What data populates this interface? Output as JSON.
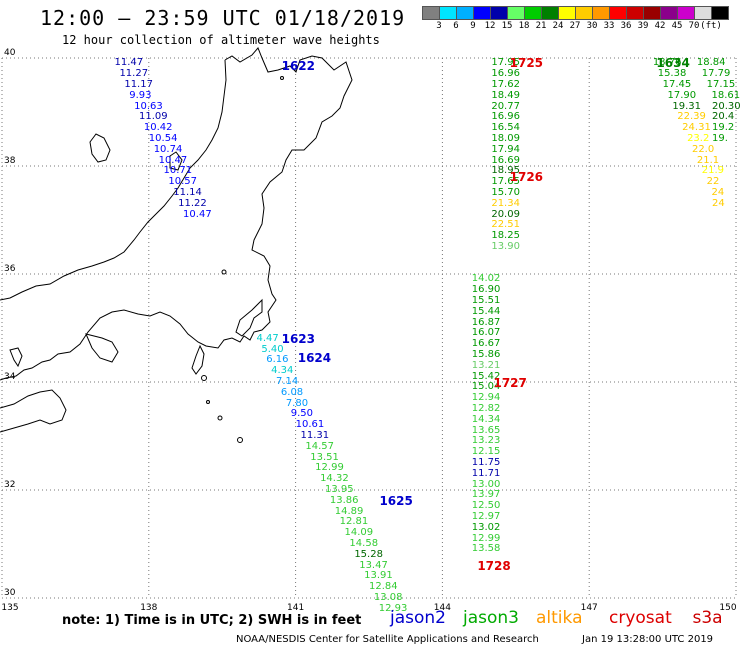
{
  "title": "12:00 – 23:59 UTC 01/18/2019",
  "subtitle": "12 hour collection of altimeter wave heights",
  "scale": {
    "colors": [
      "#808080",
      "#00e5ff",
      "#00b0ff",
      "#0000ff",
      "#0000aa",
      "#66ff66",
      "#00cc00",
      "#008000",
      "#ffff00",
      "#ffcc00",
      "#ff9900",
      "#ff0000",
      "#cc0000",
      "#990000",
      "#8b008b",
      "#cc00cc",
      "#dddddd",
      "#000000"
    ],
    "labels": [
      "3",
      "6",
      "9",
      "12",
      "15",
      "18",
      "21",
      "24",
      "27",
      "30",
      "33",
      "36",
      "39",
      "42",
      "45",
      "70",
      "(ft)"
    ]
  },
  "axes": {
    "lon_labels": [
      "135",
      "138",
      "141",
      "144",
      "147",
      "150"
    ],
    "lat_labels": [
      "40",
      "38",
      "36",
      "34",
      "32",
      "30"
    ]
  },
  "passes": [
    {
      "id": "1622",
      "lon": 141.0,
      "lat": 39.85,
      "color": "#0000cc"
    },
    {
      "id": "1623",
      "lon": 141.0,
      "lat": 34.8,
      "color": "#0000cc"
    },
    {
      "id": "1624",
      "lon": 141.33,
      "lat": 34.44,
      "color": "#0000cc"
    },
    {
      "id": "1625",
      "lon": 143.0,
      "lat": 31.8,
      "color": "#0000cc"
    },
    {
      "id": "1725",
      "lon": 145.66,
      "lat": 39.9,
      "color": "#e00000"
    },
    {
      "id": "1726",
      "lon": 145.66,
      "lat": 37.8,
      "color": "#e00000"
    },
    {
      "id": "1727",
      "lon": 145.33,
      "lat": 33.98,
      "color": "#e00000"
    },
    {
      "id": "1728",
      "lon": 145.0,
      "lat": 30.6,
      "color": "#e00000"
    },
    {
      "id": "1634",
      "lon": 148.66,
      "lat": 39.9,
      "color": "#008000"
    }
  ],
  "tracks": [
    {
      "name": "jason2 pass 1622",
      "points": [
        {
          "lon": 137.3,
          "lat": 39.9,
          "v": "11.47",
          "c": "#0000aa"
        },
        {
          "lon": 137.4,
          "lat": 39.7,
          "v": "11.27",
          "c": "#0000aa"
        },
        {
          "lon": 137.5,
          "lat": 39.5,
          "v": "11.17",
          "c": "#0000aa"
        },
        {
          "lon": 137.6,
          "lat": 39.3,
          "v": "9.93",
          "c": "#0000ff"
        },
        {
          "lon": 137.7,
          "lat": 39.1,
          "v": "10.63",
          "c": "#0000ff"
        },
        {
          "lon": 137.8,
          "lat": 38.9,
          "v": "11.09",
          "c": "#0000aa"
        },
        {
          "lon": 137.9,
          "lat": 38.7,
          "v": "10.42",
          "c": "#0000ff"
        },
        {
          "lon": 138.0,
          "lat": 38.5,
          "v": "10.54",
          "c": "#0000ff"
        },
        {
          "lon": 138.1,
          "lat": 38.3,
          "v": "10.74",
          "c": "#0000ff"
        },
        {
          "lon": 138.2,
          "lat": 38.1,
          "v": "10.47",
          "c": "#0000ff"
        },
        {
          "lon": 138.3,
          "lat": 37.9,
          "v": "10.71",
          "c": "#0000ff"
        },
        {
          "lon": 138.4,
          "lat": 37.7,
          "v": "10.57",
          "c": "#0000ff"
        },
        {
          "lon": 138.5,
          "lat": 37.5,
          "v": "11.14",
          "c": "#0000aa"
        },
        {
          "lon": 138.6,
          "lat": 37.3,
          "v": "11.22",
          "c": "#0000aa"
        },
        {
          "lon": 138.7,
          "lat": 37.1,
          "v": "10.47",
          "c": "#0000ff"
        }
      ]
    },
    {
      "name": "jason2 pass 1624",
      "points": [
        {
          "lon": 140.2,
          "lat": 34.8,
          "v": "4.47",
          "c": "#00cccc"
        },
        {
          "lon": 140.3,
          "lat": 34.6,
          "v": "5.40",
          "c": "#00cccc"
        },
        {
          "lon": 140.4,
          "lat": 34.4,
          "v": "6.16",
          "c": "#0099ff"
        },
        {
          "lon": 140.5,
          "lat": 34.2,
          "v": "4.34",
          "c": "#00cccc"
        },
        {
          "lon": 140.6,
          "lat": 34.0,
          "v": "7.14",
          "c": "#0099ff"
        },
        {
          "lon": 140.7,
          "lat": 33.8,
          "v": "6.08",
          "c": "#0099ff"
        },
        {
          "lon": 140.8,
          "lat": 33.6,
          "v": "7.80",
          "c": "#0099ff"
        },
        {
          "lon": 140.9,
          "lat": 33.4,
          "v": "9.50",
          "c": "#0000ff"
        },
        {
          "lon": 141.0,
          "lat": 33.2,
          "v": "10.61",
          "c": "#0000ff"
        },
        {
          "lon": 141.1,
          "lat": 33.0,
          "v": "11.31",
          "c": "#0000aa"
        },
        {
          "lon": 141.2,
          "lat": 32.8,
          "v": "14.57",
          "c": "#33cc33"
        },
        {
          "lon": 141.3,
          "lat": 32.6,
          "v": "13.51",
          "c": "#33cc33"
        },
        {
          "lon": 141.4,
          "lat": 32.4,
          "v": "12.99",
          "c": "#33cc33"
        },
        {
          "lon": 141.5,
          "lat": 32.2,
          "v": "14.32",
          "c": "#33cc33"
        },
        {
          "lon": 141.6,
          "lat": 32.0,
          "v": "13.95",
          "c": "#33cc33"
        },
        {
          "lon": 141.7,
          "lat": 31.8,
          "v": "13.86",
          "c": "#33cc33"
        },
        {
          "lon": 141.8,
          "lat": 31.6,
          "v": "14.89",
          "c": "#33cc33"
        },
        {
          "lon": 141.9,
          "lat": 31.4,
          "v": "12.81",
          "c": "#33cc33"
        },
        {
          "lon": 142.0,
          "lat": 31.2,
          "v": "14.09",
          "c": "#33cc33"
        },
        {
          "lon": 142.1,
          "lat": 31.0,
          "v": "14.58",
          "c": "#33cc33"
        },
        {
          "lon": 142.2,
          "lat": 30.8,
          "v": "15.28",
          "c": "#006600"
        },
        {
          "lon": 142.3,
          "lat": 30.6,
          "v": "13.47",
          "c": "#33cc33"
        },
        {
          "lon": 142.4,
          "lat": 30.4,
          "v": "13.91",
          "c": "#33cc33"
        },
        {
          "lon": 142.5,
          "lat": 30.2,
          "v": "12.84",
          "c": "#33cc33"
        },
        {
          "lon": 142.6,
          "lat": 30.0,
          "v": "13.08",
          "c": "#33cc33"
        },
        {
          "lon": 142.7,
          "lat": 29.8,
          "v": "12.93",
          "c": "#33cc33"
        }
      ]
    },
    {
      "name": "jason3 pass 1726",
      "points": [
        {
          "lon": 145.0,
          "lat": 39.9,
          "v": "17.95",
          "c": "#009900"
        },
        {
          "lon": 145.0,
          "lat": 39.7,
          "v": "16.96",
          "c": "#009900"
        },
        {
          "lon": 145.0,
          "lat": 39.5,
          "v": "17.62",
          "c": "#009900"
        },
        {
          "lon": 145.0,
          "lat": 39.3,
          "v": "18.49",
          "c": "#009900"
        },
        {
          "lon": 145.0,
          "lat": 39.1,
          "v": "20.77",
          "c": "#009900"
        },
        {
          "lon": 145.0,
          "lat": 38.9,
          "v": "16.96",
          "c": "#009900"
        },
        {
          "lon": 145.0,
          "lat": 38.7,
          "v": "16.54",
          "c": "#009900"
        },
        {
          "lon": 145.0,
          "lat": 38.5,
          "v": "18.09",
          "c": "#009900"
        },
        {
          "lon": 145.0,
          "lat": 38.3,
          "v": "17.94",
          "c": "#009900"
        },
        {
          "lon": 145.0,
          "lat": 38.1,
          "v": "16.69",
          "c": "#009900"
        },
        {
          "lon": 145.0,
          "lat": 37.9,
          "v": "18.95",
          "c": "#006600"
        },
        {
          "lon": 145.0,
          "lat": 37.7,
          "v": "17.65",
          "c": "#009900"
        },
        {
          "lon": 145.0,
          "lat": 37.5,
          "v": "15.70",
          "c": "#009900"
        },
        {
          "lon": 145.0,
          "lat": 37.3,
          "v": "21.34",
          "c": "#ffcc00"
        },
        {
          "lon": 145.0,
          "lat": 37.1,
          "v": "20.09",
          "c": "#006600"
        },
        {
          "lon": 145.0,
          "lat": 36.9,
          "v": "22.51",
          "c": "#ffcc00"
        },
        {
          "lon": 145.0,
          "lat": 36.7,
          "v": "18.25",
          "c": "#009900"
        },
        {
          "lon": 145.0,
          "lat": 36.5,
          "v": "13.90",
          "c": "#66cc66"
        }
      ]
    },
    {
      "name": "jason3 pass 1728",
      "points": [
        {
          "lon": 144.6,
          "lat": 35.9,
          "v": "14.02",
          "c": "#33cc33"
        },
        {
          "lon": 144.6,
          "lat": 35.7,
          "v": "16.90",
          "c": "#009900"
        },
        {
          "lon": 144.6,
          "lat": 35.5,
          "v": "15.51",
          "c": "#009900"
        },
        {
          "lon": 144.6,
          "lat": 35.3,
          "v": "15.44",
          "c": "#009900"
        },
        {
          "lon": 144.6,
          "lat": 35.1,
          "v": "16.87",
          "c": "#009900"
        },
        {
          "lon": 144.6,
          "lat": 34.9,
          "v": "16.07",
          "c": "#009900"
        },
        {
          "lon": 144.6,
          "lat": 34.7,
          "v": "16.67",
          "c": "#009900"
        },
        {
          "lon": 144.6,
          "lat": 34.5,
          "v": "15.86",
          "c": "#009900"
        },
        {
          "lon": 144.6,
          "lat": 34.3,
          "v": "13.21",
          "c": "#66cc66"
        },
        {
          "lon": 144.6,
          "lat": 34.1,
          "v": "15.42",
          "c": "#009900"
        },
        {
          "lon": 144.6,
          "lat": 33.9,
          "v": "15.04",
          "c": "#009900"
        },
        {
          "lon": 144.6,
          "lat": 33.7,
          "v": "12.94",
          "c": "#33cc33"
        },
        {
          "lon": 144.6,
          "lat": 33.5,
          "v": "12.82",
          "c": "#33cc33"
        },
        {
          "lon": 144.6,
          "lat": 33.3,
          "v": "14.34",
          "c": "#33cc33"
        },
        {
          "lon": 144.6,
          "lat": 33.1,
          "v": "13.65",
          "c": "#33cc33"
        },
        {
          "lon": 144.6,
          "lat": 32.9,
          "v": "13.23",
          "c": "#33cc33"
        },
        {
          "lon": 144.6,
          "lat": 32.7,
          "v": "12.15",
          "c": "#33cc33"
        },
        {
          "lon": 144.6,
          "lat": 32.5,
          "v": "11.75",
          "c": "#0000aa"
        },
        {
          "lon": 144.6,
          "lat": 32.3,
          "v": "11.71",
          "c": "#0000aa"
        },
        {
          "lon": 144.6,
          "lat": 32.1,
          "v": "13.00",
          "c": "#33cc33"
        },
        {
          "lon": 144.6,
          "lat": 31.9,
          "v": "13.97",
          "c": "#33cc33"
        },
        {
          "lon": 144.6,
          "lat": 31.7,
          "v": "12.50",
          "c": "#33cc33"
        },
        {
          "lon": 144.6,
          "lat": 31.5,
          "v": "12.97",
          "c": "#33cc33"
        },
        {
          "lon": 144.6,
          "lat": 31.3,
          "v": "13.02",
          "c": "#009900"
        },
        {
          "lon": 144.6,
          "lat": 31.1,
          "v": "12.99",
          "c": "#33cc33"
        },
        {
          "lon": 144.6,
          "lat": 30.9,
          "v": "13.58",
          "c": "#33cc33"
        }
      ]
    },
    {
      "name": "jason3 pass 1634",
      "points": [
        {
          "lon": 148.3,
          "lat": 39.9,
          "v": "18.76",
          "c": "#009900"
        },
        {
          "lon": 148.4,
          "lat": 39.7,
          "v": "15.38",
          "c": "#009900"
        },
        {
          "lon": 148.5,
          "lat": 39.5,
          "v": "17.45",
          "c": "#009900"
        },
        {
          "lon": 148.6,
          "lat": 39.3,
          "v": "17.90",
          "c": "#009900"
        },
        {
          "lon": 148.7,
          "lat": 39.1,
          "v": "19.31",
          "c": "#006600"
        },
        {
          "lon": 148.8,
          "lat": 38.9,
          "v": "22.39",
          "c": "#ffcc00"
        },
        {
          "lon": 148.9,
          "lat": 38.7,
          "v": "24.31",
          "c": "#ffcc00"
        },
        {
          "lon": 149.0,
          "lat": 38.5,
          "v": "23.2",
          "c": "#ffff00"
        },
        {
          "lon": 149.1,
          "lat": 38.3,
          "v": "22.0",
          "c": "#ffcc00"
        },
        {
          "lon": 149.2,
          "lat": 38.1,
          "v": "21.1",
          "c": "#ffcc00"
        },
        {
          "lon": 149.3,
          "lat": 37.9,
          "v": "21.9",
          "c": "#ffff00"
        },
        {
          "lon": 149.4,
          "lat": 37.7,
          "v": "22",
          "c": "#ffcc00"
        },
        {
          "lon": 149.5,
          "lat": 37.5,
          "v": "24",
          "c": "#ffcc00"
        },
        {
          "lon": 149.6,
          "lat": 37.3,
          "v": "24",
          "c": "#ffcc00"
        }
      ]
    },
    {
      "name": "jason3 pass 1634 east",
      "points": [
        {
          "lon": 149.2,
          "lat": 39.9,
          "v": "18.84",
          "c": "#009900"
        },
        {
          "lon": 149.3,
          "lat": 39.7,
          "v": "17.79",
          "c": "#009900"
        },
        {
          "lon": 149.4,
          "lat": 39.5,
          "v": "17.15",
          "c": "#009900"
        },
        {
          "lon": 149.5,
          "lat": 39.3,
          "v": "18.61",
          "c": "#009900"
        },
        {
          "lon": 149.6,
          "lat": 39.1,
          "v": "20.30",
          "c": "#006600"
        },
        {
          "lon": 149.7,
          "lat": 38.9,
          "v": "20.4",
          "c": "#006600"
        },
        {
          "lon": 149.8,
          "lat": 38.7,
          "v": "19.2",
          "c": "#009900"
        },
        {
          "lon": 149.9,
          "lat": 38.5,
          "v": "19.",
          "c": "#009900"
        }
      ]
    }
  ],
  "note": "note:  1) Time is in UTC;  2) SWH is in feet",
  "legend": [
    {
      "label": "jason2",
      "color": "#0000cc"
    },
    {
      "label": "jason3",
      "color": "#00aa00"
    },
    {
      "label": "altika",
      "color": "#ff9900"
    },
    {
      "label": "cryosat",
      "color": "#dd0000"
    },
    {
      "label": "s3a",
      "color": "#cc0000"
    }
  ],
  "credit": "NOAA/NESDIS Center for Satellite Applications and Research",
  "timestamp": "Jan 19 13:28:00 UTC 2019"
}
